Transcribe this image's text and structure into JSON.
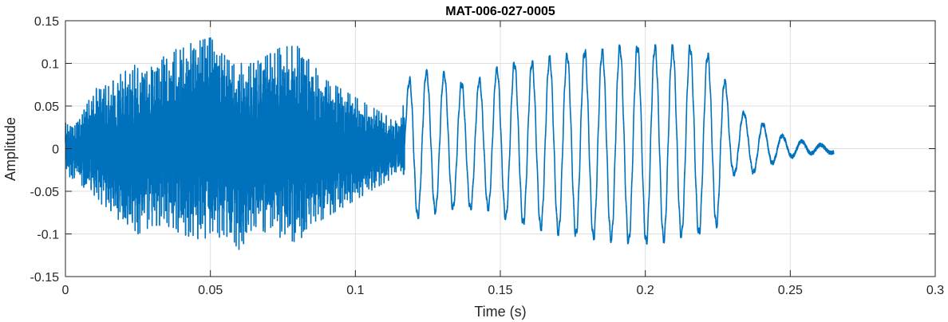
{
  "chart_data": {
    "type": "line",
    "title": "MAT-006-027-0005",
    "xlabel": "Time (s)",
    "ylabel": "Amplitude",
    "xlim": [
      0,
      0.3
    ],
    "ylim": [
      -0.15,
      0.15
    ],
    "xticks": [
      0,
      0.05,
      0.1,
      0.15,
      0.2,
      0.25,
      0.3
    ],
    "xtick_labels": [
      "0",
      "0.05",
      "0.1",
      "0.15",
      "0.2",
      "0.25",
      "0.3"
    ],
    "yticks": [
      -0.15,
      -0.1,
      -0.05,
      0,
      0.05,
      0.1,
      0.15
    ],
    "ytick_labels": [
      "-0.15",
      "-0.1",
      "-0.05",
      "0",
      "0.05",
      "0.1",
      "0.15"
    ],
    "grid": true,
    "line_color": "#0072BD",
    "series": [
      {
        "x": [
          0,
          0.005,
          0.01,
          0.015,
          0.02,
          0.025,
          0.03,
          0.035,
          0.04,
          0.045,
          0.05,
          0.055,
          0.06,
          0.065,
          0.07,
          0.075,
          0.08,
          0.085,
          0.09,
          0.095,
          0.1,
          0.105,
          0.11,
          0.115,
          0.12,
          0.125,
          0.13,
          0.135,
          0.14,
          0.145,
          0.15,
          0.155,
          0.16,
          0.165,
          0.17,
          0.175,
          0.18,
          0.185,
          0.19,
          0.195,
          0.2,
          0.205,
          0.21,
          0.215,
          0.22,
          0.225,
          0.23,
          0.235,
          0.24,
          0.245,
          0.25,
          0.255,
          0.26,
          0.265
        ],
        "envelope_upper": [
          0.03,
          0.035,
          0.07,
          0.075,
          0.09,
          0.1,
          0.1,
          0.11,
          0.12,
          0.125,
          0.13,
          0.11,
          0.1,
          0.1,
          0.11,
          0.12,
          0.12,
          0.1,
          0.08,
          0.07,
          0.06,
          0.05,
          0.04,
          0.03,
          0.1,
          0.09,
          0.09,
          0.08,
          0.07,
          0.09,
          0.095,
          0.1,
          0.1,
          0.105,
          0.11,
          0.11,
          0.115,
          0.115,
          0.12,
          0.12,
          0.12,
          0.12,
          0.12,
          0.12,
          0.11,
          0.11,
          0.05,
          0.04,
          0.03,
          0.018,
          0.012,
          0.008,
          0.005,
          0
        ],
        "envelope_lower": [
          -0.03,
          -0.04,
          -0.06,
          -0.07,
          -0.09,
          -0.1,
          -0.09,
          -0.09,
          -0.1,
          -0.105,
          -0.11,
          -0.1,
          -0.12,
          -0.09,
          -0.1,
          -0.105,
          -0.11,
          -0.09,
          -0.08,
          -0.07,
          -0.06,
          -0.05,
          -0.04,
          -0.03,
          -0.08,
          -0.08,
          -0.07,
          -0.07,
          -0.07,
          -0.07,
          -0.08,
          -0.085,
          -0.09,
          -0.095,
          -0.1,
          -0.1,
          -0.105,
          -0.105,
          -0.11,
          -0.11,
          -0.11,
          -0.11,
          -0.105,
          -0.1,
          -0.1,
          -0.09,
          -0.03,
          -0.03,
          -0.025,
          -0.015,
          -0.01,
          -0.007,
          -0.004,
          -0.005
        ]
      }
    ]
  }
}
